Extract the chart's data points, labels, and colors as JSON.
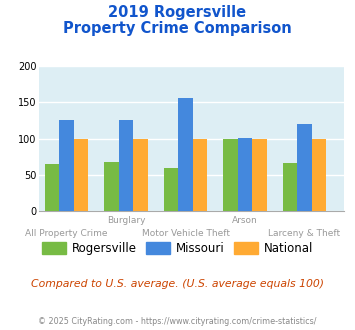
{
  "title_line1": "2019 Rogersville",
  "title_line2": "Property Crime Comparison",
  "x_labels_top": [
    "",
    "Burglary",
    "",
    "Arson",
    ""
  ],
  "x_labels_bottom": [
    "All Property Crime",
    "",
    "Motor Vehicle Theft",
    "",
    "Larceny & Theft"
  ],
  "rogersville": [
    65,
    68,
    59,
    100,
    67
  ],
  "missouri": [
    125,
    126,
    156,
    101,
    120
  ],
  "national": [
    100,
    100,
    100,
    100,
    100
  ],
  "rogersville_color": "#77bb44",
  "missouri_color": "#4488dd",
  "national_color": "#ffaa33",
  "bg_color": "#ddeef4",
  "ylim": [
    0,
    200
  ],
  "yticks": [
    0,
    50,
    100,
    150,
    200
  ],
  "title_color": "#1155cc",
  "subtitle_note": "Compared to U.S. average. (U.S. average equals 100)",
  "subtitle_color": "#cc4400",
  "footer": "© 2025 CityRating.com - https://www.cityrating.com/crime-statistics/",
  "footer_color": "#888888",
  "legend_labels": [
    "Rogersville",
    "Missouri",
    "National"
  ]
}
